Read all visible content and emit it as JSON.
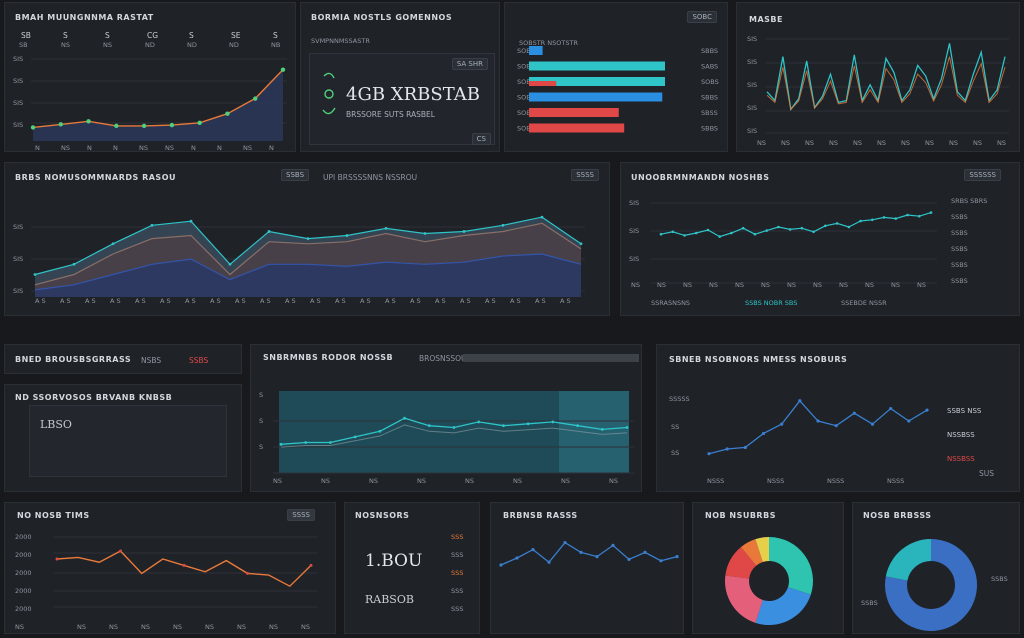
{
  "colors": {
    "bg": "#17191d",
    "panel": "#1f2227",
    "teal": "#2ec4c8",
    "orange": "#e9793a",
    "red": "#e04848",
    "blue": "#2a8fe0",
    "green": "#4fd17a",
    "navy": "#2c3a66"
  },
  "p1": {
    "title": "BMAH MUUNGNNMA RASTAT",
    "stats": [
      "SB",
      "S",
      "S",
      "CG",
      "S",
      "SE",
      "S"
    ],
    "subs": [
      "SB",
      "NS",
      "NS",
      "ND",
      "ND",
      "ND",
      "NB"
    ]
  },
  "p2": {
    "title": "BORMIA NOSTLS GOMENNOS",
    "subtitle": "SVMPNNMSSASTR",
    "button": "SA SHR",
    "value": "4GB XRBSTAB",
    "caption": "BRSSORE SUTS RASBEL",
    "corner": "CS"
  },
  "p3": {
    "button": "SOBC",
    "rows": [
      "SOBSTR NSOTSTR",
      "SBBS",
      "SABS",
      "SOBS",
      "SBBS",
      "SBSS",
      "SBBS"
    ]
  },
  "p4": {
    "title": "MASBE"
  },
  "p5": {
    "title": "BRBS NOMUSOMMNARDS RASOU",
    "button": "SSBS",
    "header_note": "UPI BRSSSSNNS NSSROU",
    "right_button": "SSSS"
  },
  "p6": {
    "title": "UNOOBRMNMANDN NOSHBS",
    "button": "SSSSSS",
    "legend": [
      "SRBS SBRS",
      "SSBS",
      "SSBS",
      "SSBS",
      "SSBS",
      "SSBS"
    ],
    "footer": [
      "SSRASNSNS",
      "SSBS NOBR SBS",
      "SSEBDE NSSR"
    ]
  },
  "p7": {
    "title": "BNED BROUSBSGRRASS",
    "tag": "NSBS",
    "tag2": "SSBS"
  },
  "p8": {
    "title": "ND SSORVOSOS BRVANB KNBSB",
    "value": "LBSO"
  },
  "p9": {
    "title": "SNBRMNBS RODOR NOSSB",
    "subtitle": "BROSNSSOUSS"
  },
  "p10": {
    "title": "SBNEB NSOBNORS NMESS NSOBURS",
    "legend": [
      "SSBS NSS",
      "NSSBSS",
      "NSSBSS"
    ],
    "corner": "SUS"
  },
  "p11": {
    "title": "NO NOSB TIMS",
    "button": "SSSS",
    "yticks": [
      "2000",
      "2000",
      "2000",
      "2000",
      "2000"
    ]
  },
  "p12": {
    "title": "NOSNSORS",
    "value": "1.BOU",
    "value2": "RABSOB",
    "labels": [
      "SSS",
      "SSS",
      "SSS",
      "SSS",
      "SSS"
    ]
  },
  "p13": {
    "title": "BRBNSB RASSS"
  },
  "p14": {
    "title": "NOB NSUBRBS"
  },
  "p15": {
    "title": "NOSB BRBSSS",
    "legend": [
      "SSBS",
      "SSBS"
    ]
  },
  "chart_data": [
    {
      "type": "area",
      "title": "BMAH MUUNGNNMA RASTAT",
      "x": [
        "N",
        "NS",
        "N",
        "N",
        "NS",
        "NS",
        "N",
        "N",
        "NS",
        "N"
      ],
      "values": [
        10,
        14,
        18,
        12,
        12,
        13,
        16,
        28,
        48,
        86
      ],
      "ylim": [
        0,
        100
      ],
      "ylabels": [
        "SIS",
        "SIS",
        "SIS",
        "SIS"
      ]
    },
    {
      "type": "bar",
      "title": "SOBC",
      "categories": [
        "SOB",
        "SOB",
        "SOB",
        "SOB",
        "SOB",
        "SOB"
      ],
      "series": [
        {
          "name": "blue",
          "values": [
            10,
            0,
            0,
            98,
            0,
            0
          ]
        },
        {
          "name": "teal",
          "values": [
            0,
            100,
            100,
            0,
            0,
            0
          ]
        },
        {
          "name": "red",
          "values": [
            0,
            0,
            20,
            0,
            66,
            70
          ]
        }
      ]
    },
    {
      "type": "line",
      "title": "MASBE",
      "values": [
        40,
        30,
        80,
        20,
        32,
        75,
        22,
        35,
        60,
        28,
        30,
        82,
        30,
        48,
        30,
        78,
        62,
        30,
        42,
        70,
        58,
        32,
        55,
        95,
        40,
        30,
        60,
        85,
        30,
        42,
        80
      ],
      "ylabels": [
        "SIS",
        "SIS",
        "SIS",
        "SIS",
        "SIS"
      ]
    },
    {
      "type": "area",
      "title": "BRBS NOMUSOMMNARDS RASOU",
      "series": [
        {
          "name": "teal",
          "values": [
            20,
            30,
            50,
            68,
            72,
            30,
            62,
            55,
            58,
            65,
            60,
            62,
            68,
            76,
            50
          ]
        },
        {
          "name": "brown",
          "values": [
            10,
            20,
            40,
            55,
            58,
            20,
            52,
            50,
            52,
            60,
            52,
            58,
            62,
            70,
            45
          ]
        },
        {
          "name": "navy",
          "values": [
            5,
            10,
            20,
            30,
            35,
            15,
            30,
            30,
            28,
            32,
            30,
            32,
            38,
            40,
            30
          ]
        }
      ],
      "ylabels": [
        "SIS",
        "SIS",
        "SIS"
      ]
    },
    {
      "type": "line",
      "title": "UNOOBRMNMANDN NOSHBS",
      "values": [
        48,
        52,
        46,
        50,
        55,
        44,
        50,
        58,
        48,
        54,
        60,
        56,
        58,
        52,
        62,
        66,
        60,
        70,
        72,
        76,
        74,
        80,
        78,
        84
      ],
      "ylabels": [
        "SIS",
        "SIS",
        "SIS"
      ]
    },
    {
      "type": "area",
      "title": "SNBRMNBS RODOR NOSSB",
      "values": [
        20,
        22,
        22,
        28,
        34,
        48,
        40,
        38,
        44,
        40,
        42,
        44,
        40,
        36,
        38
      ],
      "ylabels": [
        "S",
        "S",
        "S"
      ]
    },
    {
      "type": "line",
      "title": "SBNEB NSOBNORS NMESS NSOBURS",
      "values": [
        12,
        18,
        20,
        38,
        50,
        80,
        54,
        48,
        64,
        50,
        70,
        54,
        68
      ],
      "ylabels": [
        "SSSSS",
        "SS",
        "SS"
      ]
    },
    {
      "type": "line",
      "title": "NO NOSB TIMS",
      "values": [
        60,
        62,
        56,
        70,
        42,
        60,
        52,
        44,
        58,
        42,
        40,
        26,
        52
      ]
    },
    {
      "type": "line",
      "title": "BRBNSB RASSS",
      "values": [
        40,
        50,
        62,
        44,
        72,
        58,
        52,
        68,
        48,
        58,
        46,
        52
      ]
    },
    {
      "type": "pie",
      "title": "NOB NSUBRBS",
      "categories": [
        "teal",
        "blue",
        "pink",
        "red",
        "orange",
        "yellow"
      ],
      "values": [
        30,
        25,
        22,
        12,
        6,
        5
      ]
    },
    {
      "type": "pie",
      "title": "NOSB BRBSSS",
      "categories": [
        "blue",
        "teal"
      ],
      "values": [
        78,
        22
      ]
    }
  ]
}
